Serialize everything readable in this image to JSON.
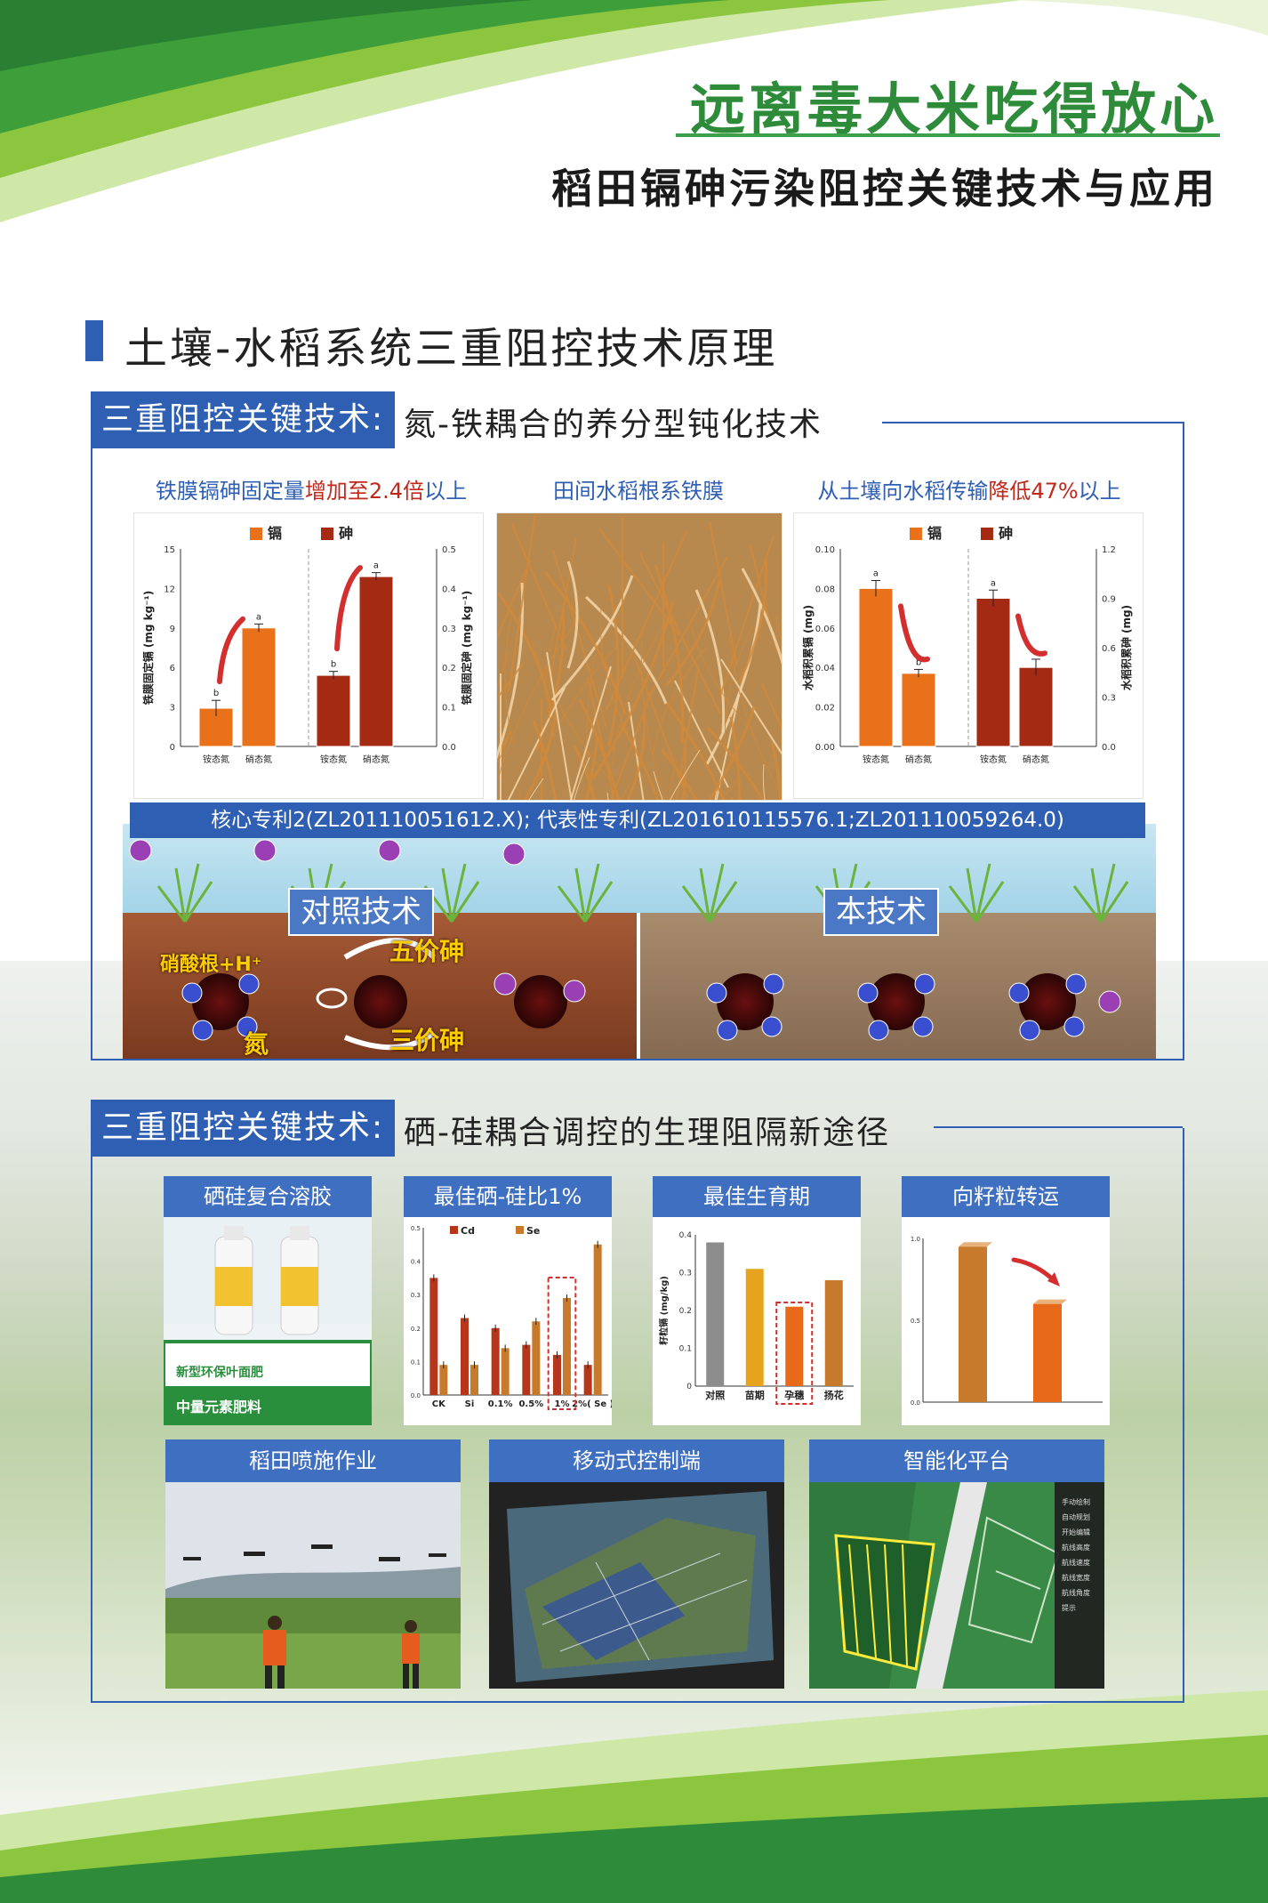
{
  "header": {
    "title": "远离毒大米吃得放心",
    "subtitle": "稻田镉砷污染阻控关键技术与应用"
  },
  "section": {
    "title": "土壤-水稻系统三重阻控技术原理"
  },
  "block1": {
    "tag": "三重阻控关键技术:",
    "heading": "氮-铁耦合的养分型钝化技术",
    "caption_left_pre": "铁膜镉砷固定量",
    "caption_left_red": "增加至2.4倍",
    "caption_left_post": "以上",
    "caption_mid": "田间水稻根系铁膜",
    "caption_right_pre": "从土壤向水稻传输",
    "caption_right_red": "降低47%",
    "caption_right_post": "以上",
    "patent": "核心专利2(ZL201110051612.X);  代表性专利(ZL201610115576.1;ZL201110059264.0)",
    "diagram": {
      "left_label": "对照技术",
      "right_label": "本技术",
      "nitrate_label": "硝酸根+H⁺",
      "as5_label": "五价砷",
      "as3_label": "三价砷",
      "n_label": "氮",
      "cd_token": "镉",
      "as_token": "砷"
    }
  },
  "chart_left": {
    "legend_cd": "镉",
    "legend_as": "砷",
    "ylabel_left": "铁膜固定镉 (mg kg⁻¹)",
    "ylabel_right": "铁膜固定砷 (mg kg⁻¹)",
    "left_ticks": [
      "15",
      "12",
      "9",
      "6",
      "3",
      "0"
    ],
    "right_ticks": [
      "0.5",
      "0.4",
      "0.3",
      "0.2",
      "0.1",
      "0.0"
    ],
    "xcats": [
      "铵态氮",
      "硝态氮",
      "铵态氮",
      "硝态氮"
    ],
    "sig": [
      "b",
      "a",
      "b",
      "a"
    ]
  },
  "chart_right": {
    "legend_cd": "镉",
    "legend_as": "砷",
    "ylabel_left": "水稻积累镉 (mg)",
    "ylabel_right": "水稻积累砷 (mg)",
    "left_ticks": [
      "0.10",
      "0.08",
      "0.06",
      "0.04",
      "0.02",
      "0.00"
    ],
    "right_ticks": [
      "1.2",
      "0.9",
      "0.6",
      "0.3",
      "0.0"
    ],
    "xcats": [
      "铵态氮",
      "硝态氮",
      "铵态氮",
      "硝态氮"
    ],
    "sig": [
      "a",
      "b",
      "a",
      "b"
    ]
  },
  "block2": {
    "tag": "三重阻控关键技术:",
    "heading": "硒-硅耦合调控的生理阻隔新途径",
    "cards": {
      "c1": "硒硅复合溶胶",
      "c2": "最佳硒-硅比1%",
      "c3": "最佳生育期",
      "c4": "向籽粒转运",
      "c5": "稻田喷施作业",
      "c6": "移动式控制端",
      "c7": "智能化平台"
    },
    "product_text": "新型环保叶面肥",
    "product_text2": "中量元素肥料",
    "chart_sese": {
      "legend_cd": "Cd",
      "legend_se": "Se",
      "ticks": [
        "0.5",
        "0.4",
        "0.3",
        "0.2",
        "0.1",
        "0.0"
      ],
      "xcats": [
        "CK",
        "Si",
        "0.1%",
        "0.5%",
        "1%",
        "2%( Se )"
      ]
    },
    "chart_stage": {
      "ylabel": "籽粒镉 (mg/kg)",
      "ticks": [
        "0.4",
        "0.3",
        "0.2",
        "0.1",
        "0"
      ],
      "xcats": [
        "对照",
        "苗期",
        "孕穗",
        "扬花"
      ]
    },
    "chart_grain": {
      "ticks": [
        "1.0",
        "0.5",
        "0.0"
      ]
    },
    "platform_menu": [
      "手动绘制",
      "自动规划",
      "开始编辑",
      "航线高度",
      "航线速度",
      "航线宽度",
      "航线角度",
      "提示"
    ]
  },
  "chart_data": [
    {
      "type": "bar",
      "categories": [
        "铵态氮",
        "硝态氮"
      ],
      "series": [
        {
          "name": "镉",
          "values": [
            2.9,
            9.0
          ],
          "errors": [
            0.6,
            0.3
          ],
          "axis": "left",
          "color": "#e8711a"
        },
        {
          "name": "砷",
          "values": [
            0.18,
            0.43
          ],
          "errors": [
            0.01,
            0.01
          ],
          "axis": "right",
          "color": "#a52a14"
        }
      ],
      "ylim_left": [
        0,
        15
      ],
      "ylim_right": [
        0,
        0.5
      ]
    },
    {
      "type": "bar",
      "categories": [
        "铵态氮",
        "硝态氮"
      ],
      "series": [
        {
          "name": "镉",
          "values": [
            0.08,
            0.037
          ],
          "errors": [
            0.004,
            0.002
          ],
          "axis": "left",
          "color": "#e8711a"
        },
        {
          "name": "砷",
          "values": [
            0.9,
            0.48
          ],
          "errors": [
            0.05,
            0.05
          ],
          "axis": "right",
          "color": "#a52a14"
        }
      ],
      "ylim_left": [
        0,
        0.1
      ],
      "ylim_right": [
        0,
        1.2
      ]
    },
    {
      "type": "bar",
      "categories": [
        "CK",
        "Si",
        "0.1%",
        "0.5%",
        "1%",
        "2%( Se )"
      ],
      "series": [
        {
          "name": "Cd",
          "values": [
            0.35,
            0.23,
            0.2,
            0.15,
            0.12,
            0.09
          ],
          "color": "#b5361a"
        },
        {
          "name": "Se",
          "values": [
            0.09,
            0.09,
            0.14,
            0.22,
            0.29,
            0.45
          ],
          "color": "#c77a2b"
        }
      ],
      "ylim": [
        0,
        0.5
      ]
    },
    {
      "type": "bar",
      "categories": [
        "对照",
        "苗期",
        "孕穗",
        "扬花"
      ],
      "values": [
        0.38,
        0.31,
        0.21,
        0.28
      ],
      "colors": [
        "#8c8c8c",
        "#e6a31e",
        "#e8691a",
        "#c77a2b"
      ],
      "ylabel": "籽粒镉 (mg/kg)",
      "ylim": [
        0,
        0.4
      ]
    },
    {
      "type": "bar",
      "categories": [
        "",
        ""
      ],
      "values": [
        0.95,
        0.6
      ],
      "colors": [
        "#c77a2b",
        "#e8691a"
      ],
      "ylim": [
        0,
        1.0
      ]
    }
  ]
}
